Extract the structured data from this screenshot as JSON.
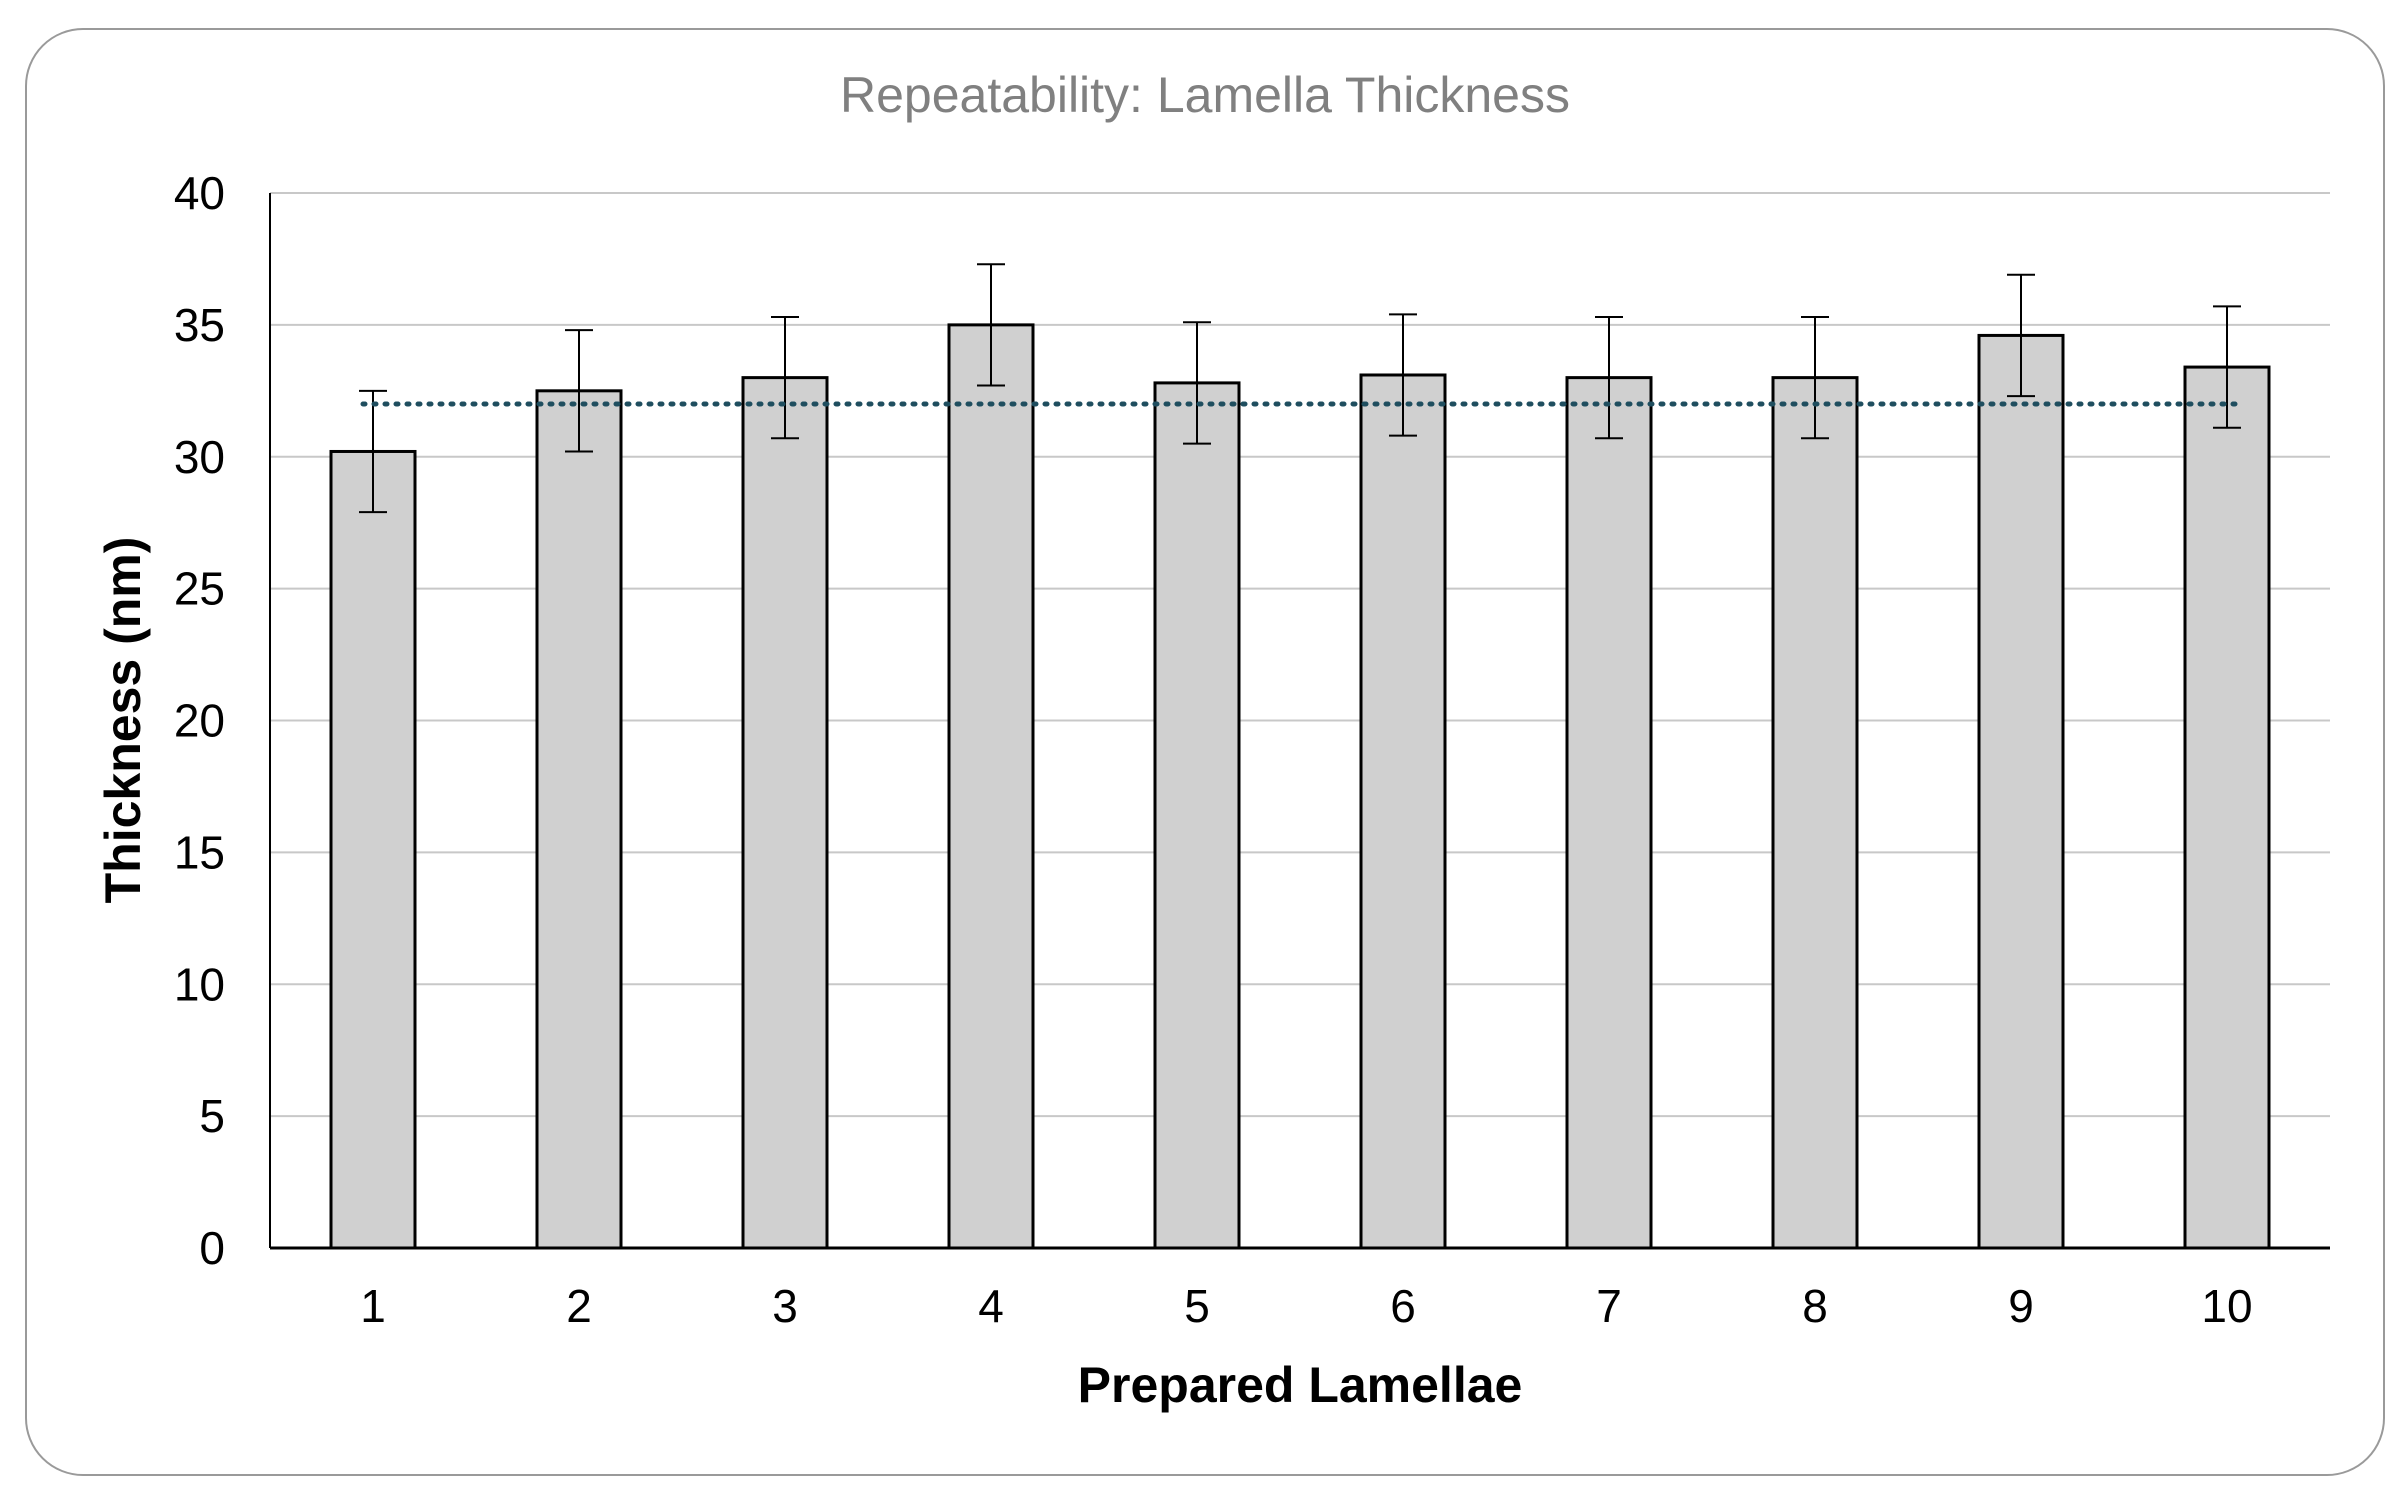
{
  "chart_data": {
    "type": "bar",
    "title": "Repeatability:  Lamella Thickness",
    "xlabel": "Prepared Lamellae",
    "ylabel": "Thickness (nm)",
    "categories": [
      "1",
      "2",
      "3",
      "4",
      "5",
      "6",
      "7",
      "8",
      "9",
      "10"
    ],
    "values": [
      30.2,
      32.5,
      33.0,
      35.0,
      32.8,
      33.1,
      33.0,
      33.0,
      34.6,
      33.4
    ],
    "error_low": [
      27.9,
      30.2,
      30.7,
      32.7,
      30.5,
      30.8,
      30.7,
      30.7,
      32.3,
      31.1
    ],
    "error_high": [
      32.5,
      34.8,
      35.3,
      37.3,
      35.1,
      35.4,
      35.3,
      35.3,
      36.9,
      35.7
    ],
    "mean_line": 32,
    "ylim": [
      0,
      40
    ],
    "yticks": [
      "0",
      "5",
      "10",
      "15",
      "20",
      "25",
      "30",
      "35",
      "40"
    ],
    "grid": true,
    "colors": {
      "bar_fill": "#d0d0d0",
      "bar_stroke": "#000000",
      "grid": "#c8c8c8",
      "mean_line": "#1f4e5f",
      "title": "#808080"
    }
  }
}
